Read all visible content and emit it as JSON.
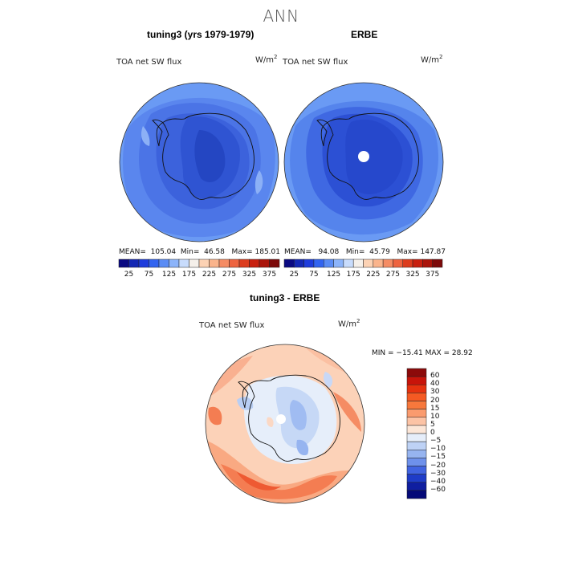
{
  "title": "ANN",
  "top_left": {
    "title": "tuning3 (yrs 1979-1979)",
    "variable": "TOA net SW flux",
    "units_base": "W/m",
    "units_exp": "2",
    "stats": {
      "mean_label": "MEAN=",
      "mean": "105.04",
      "min_label": "Min=",
      "min": "46.58",
      "max_label": "Max=",
      "max": "185.01"
    }
  },
  "top_right": {
    "title": "ERBE",
    "variable": "TOA net SW flux",
    "units_base": "W/m",
    "units_exp": "2",
    "stats": {
      "mean_label": "MEAN=",
      "mean": "94.08",
      "min_label": "Min=",
      "min": "45.79",
      "max_label": "Max=",
      "max": "147.87"
    }
  },
  "top_colorbar": {
    "labels": [
      "25",
      "75",
      "125",
      "175",
      "225",
      "275",
      "325",
      "375"
    ],
    "colors": [
      "#0a0a82",
      "#1428b4",
      "#1e3cdc",
      "#3264f0",
      "#5a8cf5",
      "#8cb4fa",
      "#c8dcfc",
      "#f5f0ea",
      "#fcd2b4",
      "#fab48c",
      "#f58c64",
      "#ee6440",
      "#dc3c1e",
      "#c8200f",
      "#aa140a",
      "#7d0a0a"
    ]
  },
  "bottom": {
    "title": "tuning3 - ERBE",
    "variable": "TOA net SW flux",
    "units_base": "W/m",
    "units_exp": "2",
    "stats": "MIN = −15.41 MAX =  28.92"
  },
  "bottom_colorbar": {
    "labels": [
      "60",
      "40",
      "30",
      "20",
      "15",
      "10",
      "5",
      "0",
      "−5",
      "−10",
      "−15",
      "−20",
      "−30",
      "−40",
      "−60"
    ],
    "colors": [
      "#8c0a0a",
      "#c8140a",
      "#e6320f",
      "#f55a23",
      "#f7783c",
      "#fa9b6e",
      "#fcc3a5",
      "#fce6d7",
      "#e6eefa",
      "#bed2f5",
      "#96b4f0",
      "#6e91eb",
      "#4164e1",
      "#1e3cc8",
      "#0f1ea0",
      "#050a78"
    ]
  }
}
